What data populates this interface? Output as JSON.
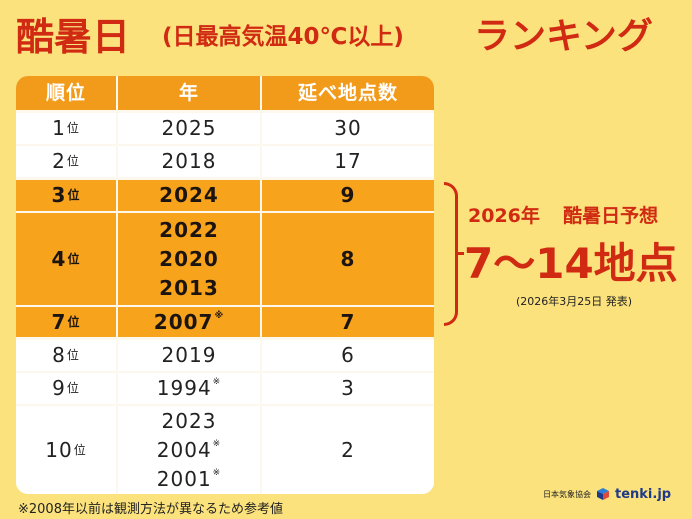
{
  "title": {
    "main": "酷暑日",
    "sub": "(日最高気温40℃以上)",
    "ranking": "ランキング"
  },
  "table": {
    "headers": [
      "順位",
      "年",
      "延べ地点数"
    ],
    "rank_suffix": "位",
    "note_mark": "※",
    "rows": [
      {
        "rank": "1",
        "years": [
          {
            "year": "2025",
            "note": false
          }
        ],
        "count": "30",
        "highlight": false
      },
      {
        "rank": "2",
        "years": [
          {
            "year": "2018",
            "note": false
          }
        ],
        "count": "17",
        "highlight": false
      },
      {
        "rank": "3",
        "years": [
          {
            "year": "2024",
            "note": false
          }
        ],
        "count": "9",
        "highlight": true
      },
      {
        "rank": "4",
        "years": [
          {
            "year": "2022",
            "note": false
          },
          {
            "year": "2020",
            "note": false
          },
          {
            "year": "2013",
            "note": false
          }
        ],
        "count": "8",
        "highlight": true
      },
      {
        "rank": "7",
        "years": [
          {
            "year": "2007",
            "note": true
          }
        ],
        "count": "7",
        "highlight": true
      },
      {
        "rank": "8",
        "years": [
          {
            "year": "2019",
            "note": false
          }
        ],
        "count": "6",
        "highlight": false
      },
      {
        "rank": "9",
        "years": [
          {
            "year": "1994",
            "note": true
          }
        ],
        "count": "3",
        "highlight": false
      },
      {
        "rank": "10",
        "years": [
          {
            "year": "2023",
            "note": false
          },
          {
            "year": "2004",
            "note": true
          },
          {
            "year": "2001",
            "note": true
          }
        ],
        "count": "2",
        "highlight": false
      }
    ]
  },
  "forecast": {
    "year": "2026年",
    "label": "酷暑日予想",
    "value": "7〜14地点",
    "announced": "(2026年3月25日 発表)"
  },
  "footnote": "※2008年以前は観測方法が異なるため参考値",
  "credit": {
    "org": "日本気象協会",
    "site": "tenki.jp"
  },
  "colors": {
    "background": "#fbe27c",
    "title_red": "#d02a13",
    "header_orange": "#f29b1a",
    "highlight_orange": "#f7a31c"
  }
}
